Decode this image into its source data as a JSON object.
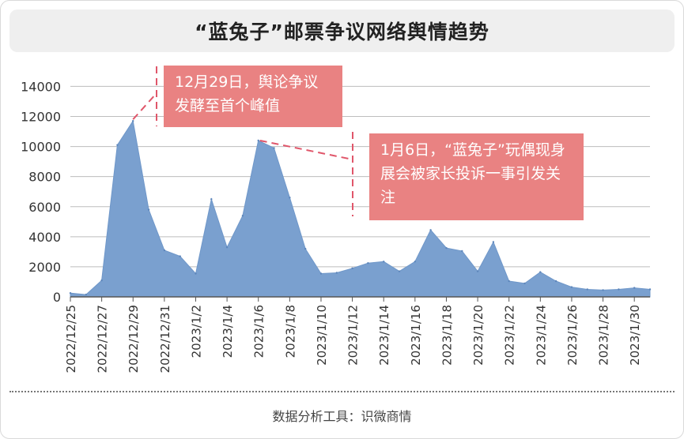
{
  "title": "“蓝兔子”邮票争议网络舆情趋势",
  "footer": "数据分析工具：识微商情",
  "annotations": [
    {
      "text": "12月29日，舆论争议发酵至首个峰值",
      "date": "2022/12/29"
    },
    {
      "text": "1月6日，“蓝兔子”玩偶现身展会被家长投诉一事引发关注",
      "date": "2023/1/6"
    }
  ],
  "colors": {
    "area": "#7aa0cf",
    "callout": "#e98282",
    "leader": "#e0566a",
    "grid": "#bdbdbd"
  },
  "chart_data": {
    "type": "area",
    "x": [
      "2022/12/25",
      "2022/12/26",
      "2022/12/27",
      "2022/12/28",
      "2022/12/29",
      "2022/12/30",
      "2022/12/31",
      "2023/1/1",
      "2023/1/2",
      "2023/1/3",
      "2023/1/4",
      "2023/1/5",
      "2023/1/6",
      "2023/1/7",
      "2023/1/8",
      "2023/1/9",
      "2023/1/10",
      "2023/1/11",
      "2023/1/12",
      "2023/1/13",
      "2023/1/14",
      "2023/1/15",
      "2023/1/16",
      "2023/1/17",
      "2023/1/18",
      "2023/1/19",
      "2023/1/20",
      "2023/1/21",
      "2023/1/22",
      "2023/1/23",
      "2023/1/24",
      "2023/1/25",
      "2023/1/26",
      "2023/1/27",
      "2023/1/28",
      "2023/1/29",
      "2023/1/30",
      "2023/1/31"
    ],
    "x_tick_labels": [
      "2022/12/25",
      "2022/12/27",
      "2022/12/29",
      "2022/12/31",
      "2023/1/2",
      "2023/1/4",
      "2023/1/6",
      "2023/1/8",
      "2023/1/10",
      "2023/1/12",
      "2023/1/14",
      "2023/1/16",
      "2023/1/18",
      "2023/1/20",
      "2023/1/22",
      "2023/1/24",
      "2023/1/26",
      "2023/1/28",
      "2023/1/30"
    ],
    "values": [
      250,
      150,
      1100,
      10100,
      11700,
      5800,
      3100,
      2700,
      1550,
      6500,
      3300,
      5400,
      10400,
      9900,
      6600,
      3200,
      1550,
      1600,
      1900,
      2250,
      2350,
      1700,
      2350,
      4450,
      3250,
      3050,
      1700,
      3650,
      1050,
      900,
      1650,
      1050,
      650,
      500,
      450,
      500,
      600,
      500
    ],
    "yticks": [
      0,
      2000,
      4000,
      6000,
      8000,
      10000,
      12000,
      14000
    ],
    "ylim": [
      0,
      14600
    ],
    "grid": true,
    "legend": "none"
  }
}
